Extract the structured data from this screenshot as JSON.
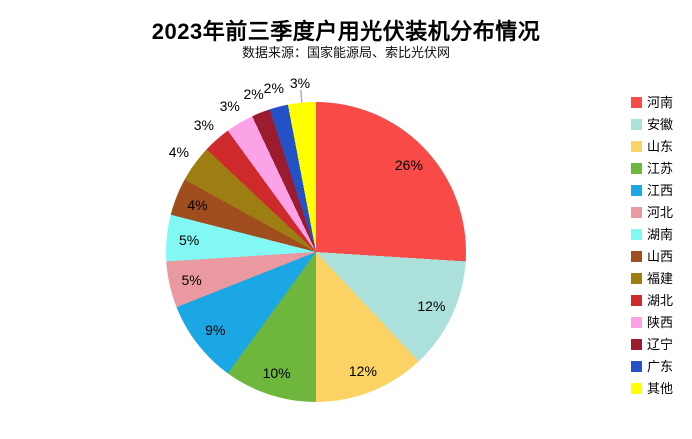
{
  "header": {
    "title": "2023年前三季度户用光伏装机分布情况",
    "subtitle": "数据来源：国家能源局、索比光伏网"
  },
  "chart_data": {
    "type": "pie",
    "title": "2023年前三季度户用光伏装机分布情况",
    "subtitle": "数据来源：国家能源局、索比光伏网",
    "legend_position": "right",
    "direction": "clockwise",
    "start_angle_deg": 0,
    "value_unit": "%",
    "label_color": "#000000",
    "leader_line_color": "#A6A6A6",
    "slices": [
      {
        "label": "河南",
        "value": 26,
        "display": "26%",
        "color": "#F84A47",
        "label_placement": "inside"
      },
      {
        "label": "安徽",
        "value": 12,
        "display": "12%",
        "color": "#ACE0DA",
        "label_placement": "inside"
      },
      {
        "label": "山东",
        "value": 12,
        "display": "12%",
        "color": "#FBD365",
        "label_placement": "inside"
      },
      {
        "label": "江苏",
        "value": 10,
        "display": "10%",
        "color": "#6FB63D",
        "label_placement": "inside"
      },
      {
        "label": "江西",
        "value": 9,
        "display": "9%",
        "color": "#1BA6E4",
        "label_placement": "inside"
      },
      {
        "label": "河北",
        "value": 5,
        "display": "5%",
        "color": "#EB99A1",
        "label_placement": "inside"
      },
      {
        "label": "湖南",
        "value": 5,
        "display": "5%",
        "color": "#82F8F4",
        "label_placement": "inside"
      },
      {
        "label": "山西",
        "value": 4,
        "display": "4%",
        "color": "#A04E1D",
        "label_placement": "inside"
      },
      {
        "label": "福建",
        "value": 4,
        "display": "4%",
        "color": "#9C7E13",
        "label_placement": "outside"
      },
      {
        "label": "湖北",
        "value": 3,
        "display": "3%",
        "color": "#CF2A2B",
        "label_placement": "outside"
      },
      {
        "label": "陕西",
        "value": 3,
        "display": "3%",
        "color": "#FCA3E8",
        "label_placement": "outside"
      },
      {
        "label": "辽宁",
        "value": 2,
        "display": "2%",
        "color": "#9B1C2E",
        "label_placement": "outside"
      },
      {
        "label": "广东",
        "value": 2,
        "display": "2%",
        "color": "#2351C8",
        "label_placement": "outside"
      },
      {
        "label": "其他",
        "value": 3,
        "display": "3%",
        "color": "#FFFF00",
        "label_placement": "outside",
        "leader_line": true
      }
    ]
  }
}
